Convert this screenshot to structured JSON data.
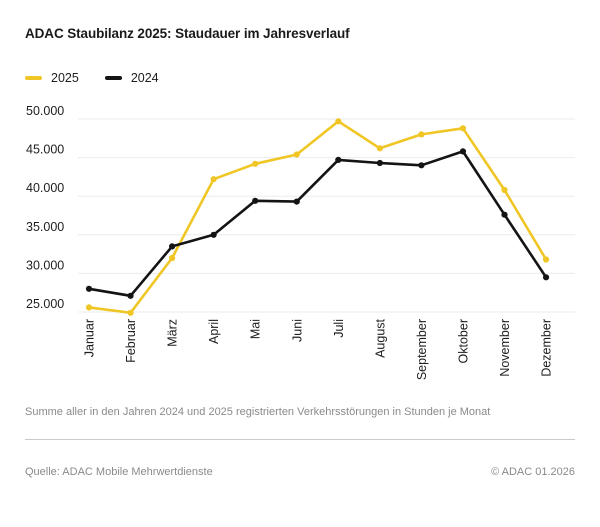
{
  "header": {
    "title": "ADAC Staubilanz 2025: Staudauer im Jahresverlauf"
  },
  "chart_data": {
    "type": "line",
    "title": "ADAC Staubilanz 2025: Staudauer im Jahresverlauf",
    "categories": [
      "Januar",
      "Februar",
      "März",
      "April",
      "Mai",
      "Juni",
      "Juli",
      "August",
      "September",
      "Oktober",
      "November",
      "Dezember"
    ],
    "series": [
      {
        "name": "2025",
        "color": "#F0C625",
        "values": [
          25600,
          24900,
          32000,
          42200,
          44200,
          45400,
          49700,
          46200,
          48000,
          48800,
          40800,
          31800
        ]
      },
      {
        "name": "2024",
        "color": "#141414",
        "values": [
          28000,
          27100,
          33500,
          35000,
          39400,
          39300,
          44700,
          44300,
          44000,
          45800,
          37600,
          29500
        ]
      }
    ],
    "xlabel": "",
    "ylabel": "",
    "ylim": [
      24000,
      50000
    ],
    "yticks": [
      25000,
      30000,
      35000,
      40000,
      45000,
      50000
    ],
    "ytick_labels": [
      "25.000",
      "30.000",
      "35.000",
      "40.000",
      "45.000",
      "50.000"
    ],
    "grid": "horizontal",
    "legend_position": "top-left",
    "marker": "circle"
  },
  "footnote": "Summe aller in den Jahren 2024 und 2025 registrierten Verkehrsstörungen in Stunden je Monat",
  "source": {
    "left": "Quelle: ADAC Mobile Mehrwertdienste",
    "right": "© ADAC 01.2026"
  },
  "colors": {
    "gridline": "#ebebeb",
    "axis_text": "#1d1d1d",
    "muted_text": "#8a8a8a",
    "divider": "#cbcbcb",
    "background": "#ffffff"
  }
}
